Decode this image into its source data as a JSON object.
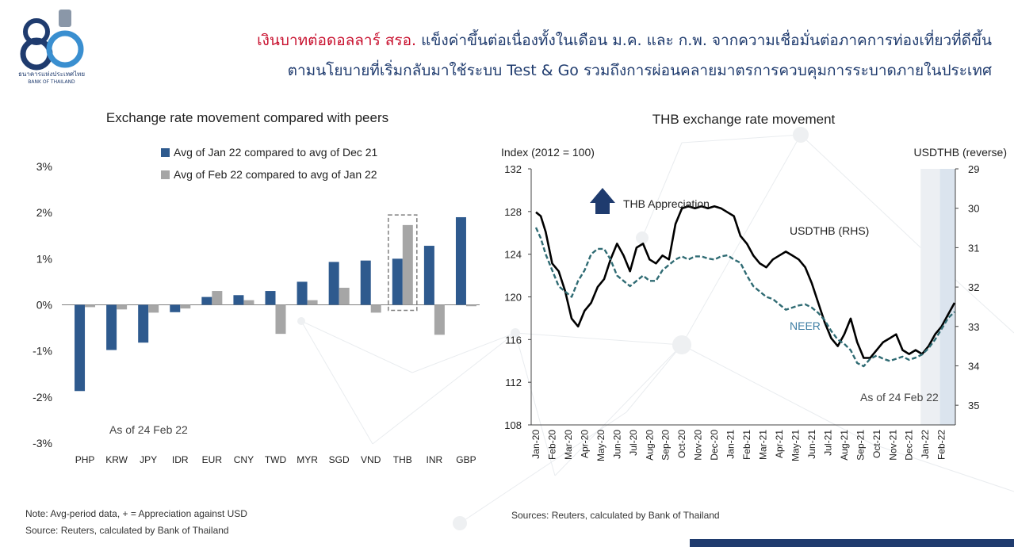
{
  "header": {
    "logo_number": "80",
    "logo_thai": "ธนาคารแห่งประเทศไทย",
    "logo_english": "BANK OF THAILAND",
    "headline_highlight": "เงินบาทต่อดอลลาร์ สรอ.",
    "headline_line1": " แข็งค่าขึ้นต่อเนื่องทั้งในเดือน ม.ค. และ ก.พ. จากความเชื่อมั่นต่อภาคการท่องเที่ยวที่ดีขึ้น",
    "headline_line2": "ตามนโยบายที่เริ่มกลับมาใช้ระบบ Test & Go รวมถึงการผ่อนคลายมาตรการควบคุมการระบาดภายในประเทศ"
  },
  "colors": {
    "series_jan": "#2e5a8e",
    "series_feb": "#a6a6a6",
    "usdthb_line": "#000000",
    "neer_line": "#2f6b73",
    "headline_red": "#c8102e",
    "headline_blue": "#1f3b6e",
    "arrow": "#1f3b6e",
    "shade": "#dbe4ee"
  },
  "chart_data": [
    {
      "type": "bar",
      "title": "Exchange rate movement compared with peers",
      "categories": [
        "PHP",
        "KRW",
        "JPY",
        "IDR",
        "EUR",
        "CNY",
        "TWD",
        "MYR",
        "SGD",
        "VND",
        "THB",
        "INR",
        "GBP"
      ],
      "series": [
        {
          "name": "Avg of Jan 22 compared to avg of Dec 21",
          "values": [
            -1.87,
            -0.98,
            -0.82,
            -0.16,
            0.17,
            0.21,
            0.3,
            0.5,
            0.93,
            0.96,
            1.0,
            1.28,
            1.9
          ]
        },
        {
          "name": "Avg of Feb 22 compared to avg of Jan 22",
          "values": [
            -0.05,
            -0.1,
            -0.17,
            -0.08,
            0.3,
            0.1,
            -0.63,
            0.1,
            0.37,
            -0.17,
            1.73,
            -0.65,
            -0.03
          ]
        }
      ],
      "y_tick_labels": [
        "3%",
        "2%",
        "1%",
        "0%",
        "-1%",
        "-2%",
        "-3%"
      ],
      "ylim": [
        -3,
        3
      ],
      "highlighted_category": "THB",
      "annotation": "As of 24 Feb 22",
      "legend_placement": "top"
    },
    {
      "type": "line",
      "title": "THB exchange rate movement",
      "ylabel": "Index (2012 = 100)",
      "y2label": "USDTHB (reverse)",
      "ylim": [
        108,
        132
      ],
      "y_ticks": [
        108,
        112,
        116,
        120,
        124,
        128,
        132
      ],
      "y2lim": [
        35.5,
        29
      ],
      "y2_ticks": [
        29,
        30,
        31,
        32,
        33,
        34,
        35
      ],
      "y2_reversed": true,
      "x_tick_labels": [
        "Jan-20",
        "Feb-20",
        "Mar-20",
        "Apr-20",
        "May-20",
        "Jun-20",
        "Jul-20",
        "Aug-20",
        "Sep-20",
        "Oct-20",
        "Nov-20",
        "Dec-20",
        "Jan-21",
        "Feb-21",
        "Mar-21",
        "Apr-21",
        "May-21",
        "Jun-21",
        "Jul-21",
        "Aug-21",
        "Sep-21",
        "Oct-21",
        "Nov-21",
        "Dec-21",
        "Jan-22",
        "Feb-22"
      ],
      "x_months_indexed_from_jan20": [
        0,
        0.3,
        0.6,
        1,
        1.4,
        1.8,
        2.2,
        2.6,
        3,
        3.4,
        3.8,
        4.2,
        4.6,
        5,
        5.4,
        5.8,
        6.2,
        6.6,
        7,
        7.4,
        7.8,
        8.2,
        8.6,
        9,
        9.4,
        9.8,
        10.2,
        10.6,
        11,
        11.4,
        11.8,
        12.2,
        12.6,
        13,
        13.4,
        13.8,
        14.2,
        14.6,
        15,
        15.4,
        15.8,
        16.2,
        16.6,
        17,
        17.4,
        17.8,
        18.2,
        18.6,
        19,
        19.4,
        19.8,
        20.2,
        20.6,
        21,
        21.4,
        21.8,
        22.2,
        22.6,
        23,
        23.4,
        23.8,
        24.2,
        24.6,
        25,
        25.4,
        25.8
      ],
      "series": [
        {
          "name": "USDTHB (RHS)",
          "axis": "right",
          "values": [
            30.1,
            30.2,
            30.6,
            31.4,
            31.6,
            32.1,
            32.8,
            33.0,
            32.6,
            32.4,
            32.0,
            31.8,
            31.3,
            30.9,
            31.2,
            31.6,
            31.0,
            30.9,
            31.3,
            31.4,
            31.2,
            31.3,
            30.4,
            30.0,
            29.95,
            30.0,
            29.95,
            30.0,
            29.95,
            30.0,
            30.1,
            30.2,
            30.7,
            30.9,
            31.2,
            31.4,
            31.5,
            31.3,
            31.2,
            31.1,
            31.2,
            31.3,
            31.5,
            31.9,
            32.4,
            32.9,
            33.3,
            33.5,
            33.2,
            32.8,
            33.4,
            33.8,
            33.8,
            33.6,
            33.4,
            33.3,
            33.2,
            33.6,
            33.7,
            33.6,
            33.7,
            33.5,
            33.2,
            33.0,
            32.7,
            32.4
          ]
        },
        {
          "name": "NEER",
          "axis": "left",
          "values": [
            126.5,
            125.5,
            124.0,
            122.5,
            121.0,
            120.5,
            120.0,
            121.5,
            122.5,
            124.0,
            124.5,
            124.5,
            123.5,
            122.0,
            121.5,
            121.0,
            121.5,
            122.0,
            121.5,
            121.5,
            122.5,
            123.0,
            123.5,
            123.8,
            123.5,
            123.8,
            123.8,
            123.6,
            123.5,
            123.8,
            123.9,
            123.5,
            123.2,
            122.0,
            121.0,
            120.5,
            120.0,
            119.8,
            119.3,
            118.8,
            119.0,
            119.2,
            119.3,
            119.0,
            118.5,
            117.8,
            116.8,
            116.0,
            115.6,
            115.0,
            113.8,
            113.5,
            114.2,
            114.5,
            114.2,
            114.0,
            114.2,
            114.4,
            114.1,
            114.3,
            114.6,
            115.2,
            116.0,
            117.0,
            118.0,
            118.6
          ]
        }
      ],
      "series_labels": [
        "USDTHB (RHS)",
        "NEER"
      ],
      "annotation_arrow": "THB Appreciation",
      "annotation_date": "As of 24 Feb 22",
      "shaded_regions": [
        "Jan-22",
        "Feb-22"
      ]
    }
  ],
  "notes": {
    "left_note": "Note: Avg-period data, + = Appreciation against USD",
    "left_source": "Source: Reuters, calculated by Bank of Thailand",
    "right_source": "Sources: Reuters, calculated by Bank of Thailand"
  }
}
